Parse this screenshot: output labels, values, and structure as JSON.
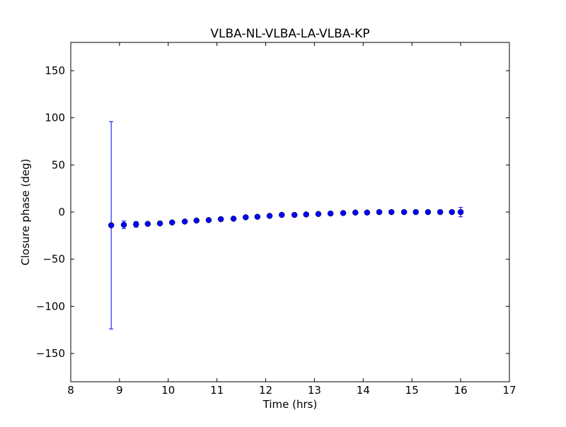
{
  "chart_data": {
    "type": "scatter",
    "title": "VLBA-NL-VLBA-LA-VLBA-KP",
    "xlabel": "Time (hrs)",
    "ylabel": "Closure phase (deg)",
    "xlim": [
      8,
      17
    ],
    "ylim": [
      -180,
      180
    ],
    "xticks": [
      8,
      9,
      10,
      11,
      12,
      13,
      14,
      15,
      16,
      17
    ],
    "yticks": [
      -150,
      -100,
      -50,
      0,
      50,
      100,
      150
    ],
    "ytick_labels": [
      "−150",
      "−100",
      "−50",
      "0",
      "50",
      "100",
      "150"
    ],
    "grid": false,
    "marker_color": "#0000ff",
    "series": [
      {
        "name": "closure phase",
        "x": [
          8.83,
          9.09,
          9.34,
          9.58,
          9.83,
          10.08,
          10.34,
          10.58,
          10.83,
          11.08,
          11.34,
          11.59,
          11.83,
          12.08,
          12.33,
          12.59,
          12.83,
          13.08,
          13.33,
          13.59,
          13.84,
          14.08,
          14.33,
          14.58,
          14.84,
          15.08,
          15.33,
          15.58,
          15.82,
          16.0
        ],
        "y": [
          -14,
          -13.5,
          -13,
          -12.5,
          -12,
          -11,
          -10,
          -9,
          -8.5,
          -7.5,
          -7,
          -5.5,
          -5,
          -4,
          -3,
          -3,
          -2.5,
          -2,
          -1.5,
          -1,
          -0.5,
          -0.5,
          0,
          0,
          0,
          0,
          0,
          0,
          0,
          0
        ],
        "yerr": [
          110,
          4,
          3,
          1.5,
          1.5,
          1,
          1,
          1,
          1,
          1,
          1,
          1,
          1,
          1,
          1,
          1,
          1,
          1,
          1,
          1,
          1,
          1,
          1,
          1,
          1,
          1,
          1,
          1,
          1,
          5
        ]
      }
    ]
  }
}
